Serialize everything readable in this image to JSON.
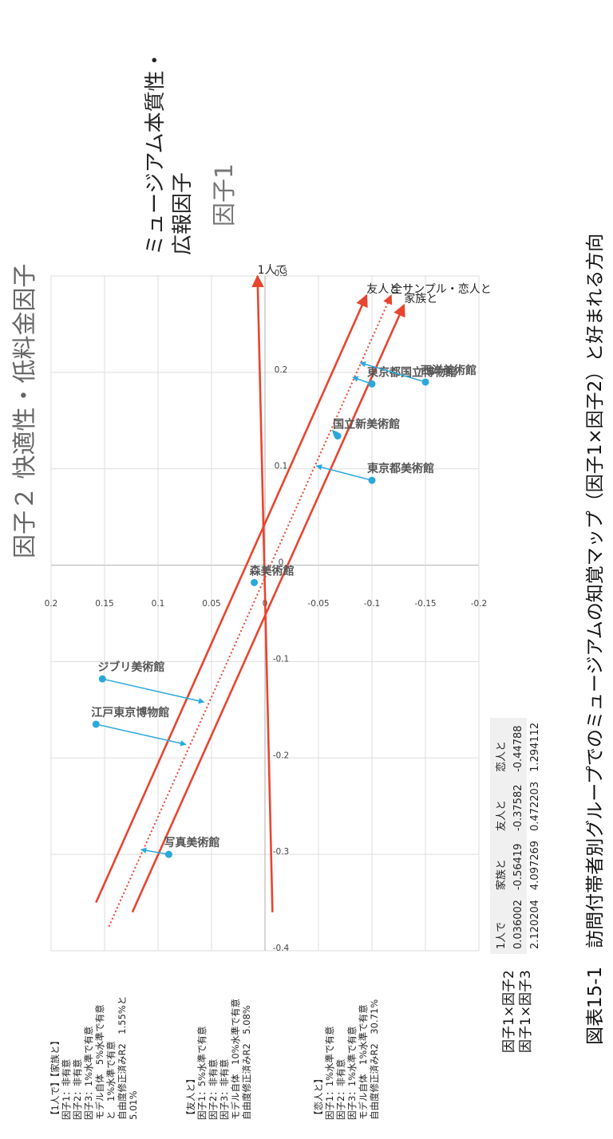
{
  "caption": "図表15-1　訪問付帯者別グループでのミュージアムの知覚マップ（因子1×因子2）と好まれる方向",
  "factor2_title": "因子２ 快適性・低料金因子",
  "factor1_title": "因子1",
  "factor1_subtitle": "ミュージアム本質性・\n広報因子",
  "notes": {
    "block1": "【1人で】【家族と】\n因子1：非有意\n因子2：非有意\n因子3：1%水準で有意\nモデル自体　5%水準で有意\nと　1%水準で有意\n自由度修正済みR2　1.55%と\n5.01%",
    "block2": "【友人と】\n因子1：5%水準で有意\n因子2：非有意\n因子3：非有意\nモデル自体　10%水準で有意\n自由度修正済みR2　5.08%",
    "block3": "【恋人と】\n因子1：1%水準で有意\n因子2：非有意\n因子3：1%水準で有意\nモデル自体　1%水準で有意\n自由度修正済みR2　30.71%"
  },
  "table": {
    "columns": [
      "1人で",
      "家族と",
      "友人と",
      "恋人と"
    ],
    "rows": [
      {
        "label": "因子1×因子2",
        "values": [
          "0.036002",
          "-0.56419",
          "-0.37582",
          "-0.44788"
        ]
      },
      {
        "label": "因子1×因子3",
        "values": [
          "2.120204",
          "4.097269",
          "0.472203",
          "1.294112"
        ]
      }
    ]
  },
  "colors": {
    "vector": "#e8452f",
    "museum": "#2aa8dc",
    "grid": "#dddddd",
    "axis": "#bbbbbb"
  },
  "chart_data": {
    "type": "scatter",
    "xlabel": "因子1",
    "ylabel": "因子２ 快適性・低料金因子",
    "xlim": [
      -0.4,
      0.3
    ],
    "ylim": [
      -0.2,
      0.2
    ],
    "x_ticks": [
      "-0.4",
      "-0.3",
      "-0.2",
      "-0.1",
      "0",
      "0.1",
      "0.2",
      "0.3"
    ],
    "y_ticks": [
      "-0.2",
      "-0.15",
      "-0.1",
      "-0.05",
      "0",
      "0.05",
      "0.1",
      "0.15",
      "0.2"
    ],
    "grid": true,
    "museums": [
      {
        "name": "江戸東京博物館",
        "x": -0.165,
        "y": 0.158,
        "proj_x": -0.186,
        "proj_y": 0.074
      },
      {
        "name": "ジブリ美術館",
        "x": -0.118,
        "y": 0.152,
        "proj_x": -0.142,
        "proj_y": 0.057
      },
      {
        "name": "写真美術館",
        "x": -0.3,
        "y": 0.09,
        "proj_x": -0.295,
        "proj_y": 0.116
      },
      {
        "name": "森美術館",
        "x": -0.018,
        "y": 0.01,
        "proj_x": null,
        "proj_y": null
      },
      {
        "name": "東京都美術館",
        "x": 0.088,
        "y": -0.1,
        "proj_x": 0.103,
        "proj_y": -0.048
      },
      {
        "name": "国立新美術館",
        "x": 0.134,
        "y": -0.068,
        "proj_x": 0.14,
        "proj_y": -0.063
      },
      {
        "name": "東京都国立博物館",
        "x": 0.188,
        "y": -0.1,
        "proj_x": 0.195,
        "proj_y": -0.082
      },
      {
        "name": "西洋美術館",
        "x": 0.19,
        "y": -0.15,
        "proj_x": 0.21,
        "proj_y": -0.089
      }
    ],
    "vectors": [
      {
        "name": "1人で",
        "x0": -0.36,
        "y0": -0.007,
        "x1": 0.3,
        "y1": 0.007,
        "style": "solid"
      },
      {
        "name": "友人と",
        "x0": -0.35,
        "y0": 0.158,
        "x1": 0.28,
        "y1": -0.095,
        "style": "solid"
      },
      {
        "name": "全サンプル・恋人と",
        "x0": -0.375,
        "y0": 0.146,
        "x1": 0.28,
        "y1": -0.118,
        "style": "dotted"
      },
      {
        "name": "家族と",
        "x0": -0.36,
        "y0": 0.124,
        "x1": 0.27,
        "y1": -0.13,
        "style": "solid"
      }
    ]
  }
}
